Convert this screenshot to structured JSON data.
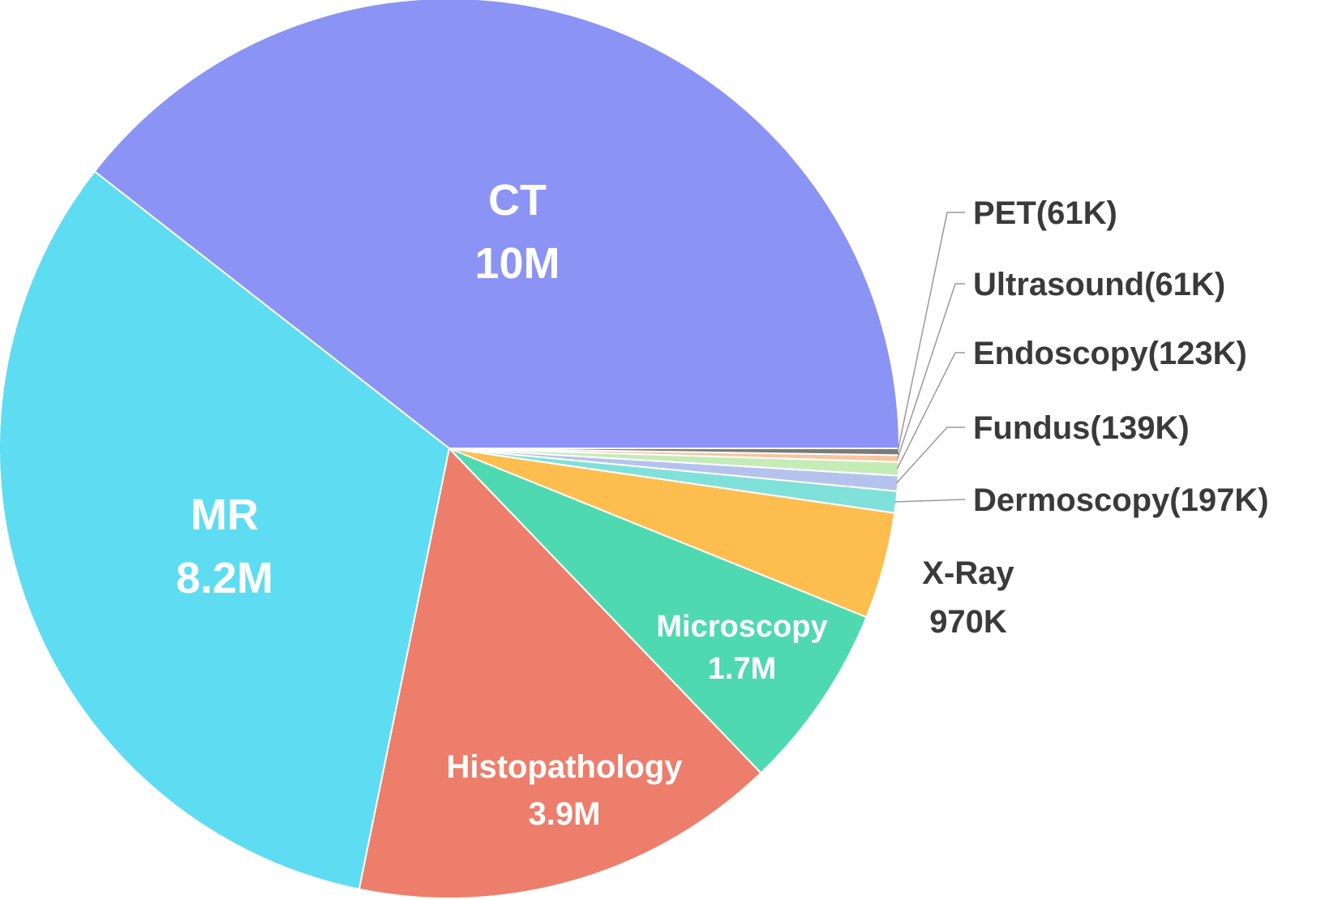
{
  "chart_data": {
    "type": "pie",
    "start_angle_deg": 0,
    "direction": "counterclockwise",
    "slices": [
      {
        "name": "CT",
        "value": 10000,
        "display": "10M",
        "color": "#8b93f5",
        "label_mode": "inside"
      },
      {
        "name": "MR",
        "value": 8200,
        "display": "8.2M",
        "color": "#5edcf2",
        "label_mode": "inside"
      },
      {
        "name": "Histopathology",
        "value": 3900,
        "display": "3.9M",
        "color": "#ec7e6b",
        "label_mode": "inside"
      },
      {
        "name": "Microscopy",
        "value": 1700,
        "display": "1.7M",
        "color": "#4fd9b0",
        "label_mode": "inside"
      },
      {
        "name": "X-Ray",
        "value": 970,
        "display": "970K",
        "color": "#fdbe4f",
        "label_mode": "outside"
      },
      {
        "name": "Dermoscopy",
        "value": 197,
        "display": "197K",
        "color": "#80e0da",
        "label_mode": "leader"
      },
      {
        "name": "Fundus",
        "value": 139,
        "display": "139K",
        "color": "#b6c2ee",
        "label_mode": "leader"
      },
      {
        "name": "Endoscopy",
        "value": 123,
        "display": "123K",
        "color": "#c5ebb6",
        "label_mode": "leader"
      },
      {
        "name": "Ultrasound",
        "value": 61,
        "display": "61K",
        "color": "#f9c49e",
        "label_mode": "leader"
      },
      {
        "name": "PET",
        "value": 61,
        "display": "61K",
        "color": "#7a7a7a",
        "label_mode": "leader"
      }
    ]
  }
}
